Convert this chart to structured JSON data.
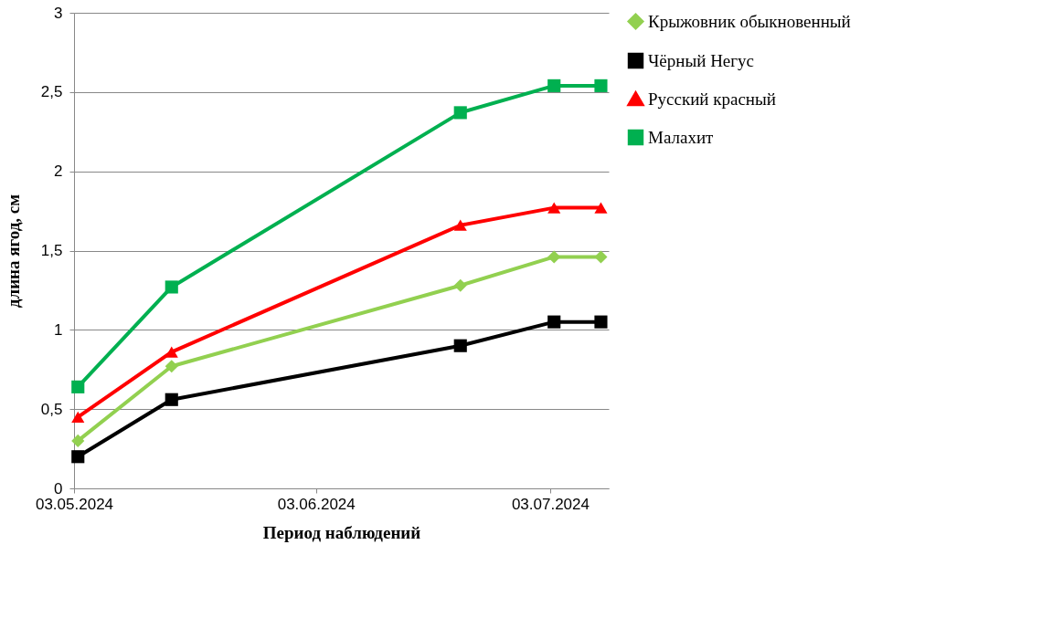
{
  "chart_data": {
    "type": "line",
    "xlabel": "Период наблюдений",
    "ylabel": "длина ягод, см",
    "x": [
      "2024-05-03T12:00",
      "2024-05-15T12:00",
      "2024-06-21T12:00",
      "2024-07-03T12:00",
      "2024-07-09T12:00"
    ],
    "xlim": [
      "2024-05-03",
      "2024-07-10T12:00"
    ],
    "xticks": [
      {
        "value": "2024-05-03",
        "label": "03.05.2024"
      },
      {
        "value": "2024-06-03",
        "label": "03.06.2024"
      },
      {
        "value": "2024-07-03",
        "label": "03.07.2024"
      }
    ],
    "ylim": [
      0,
      3
    ],
    "yticks": [
      0,
      {
        "value": 0.5,
        "label": "0,5"
      },
      1,
      {
        "value": 1.5,
        "label": "1,5"
      },
      2,
      {
        "value": 2.5,
        "label": "2,5"
      },
      3
    ],
    "grid": "y",
    "legend": "right",
    "line_style": "solid",
    "series": [
      {
        "name": "Крыжовник обыкновенный",
        "color": "#92d050",
        "marker": "diamond",
        "values": [
          0.3,
          0.77,
          1.28,
          1.46,
          1.46
        ]
      },
      {
        "name": "Чёрный Негус",
        "color": "#000000",
        "marker": "square",
        "values": [
          0.2,
          0.56,
          0.9,
          1.05,
          1.05
        ]
      },
      {
        "name": "Русский красный",
        "color": "#ff0000",
        "marker": "triangle",
        "values": [
          0.45,
          0.86,
          1.66,
          1.77,
          1.77
        ]
      },
      {
        "name": "Малахит",
        "color": "#00b050",
        "marker": "square",
        "values": [
          0.64,
          1.27,
          2.37,
          2.54,
          2.54
        ]
      }
    ]
  }
}
